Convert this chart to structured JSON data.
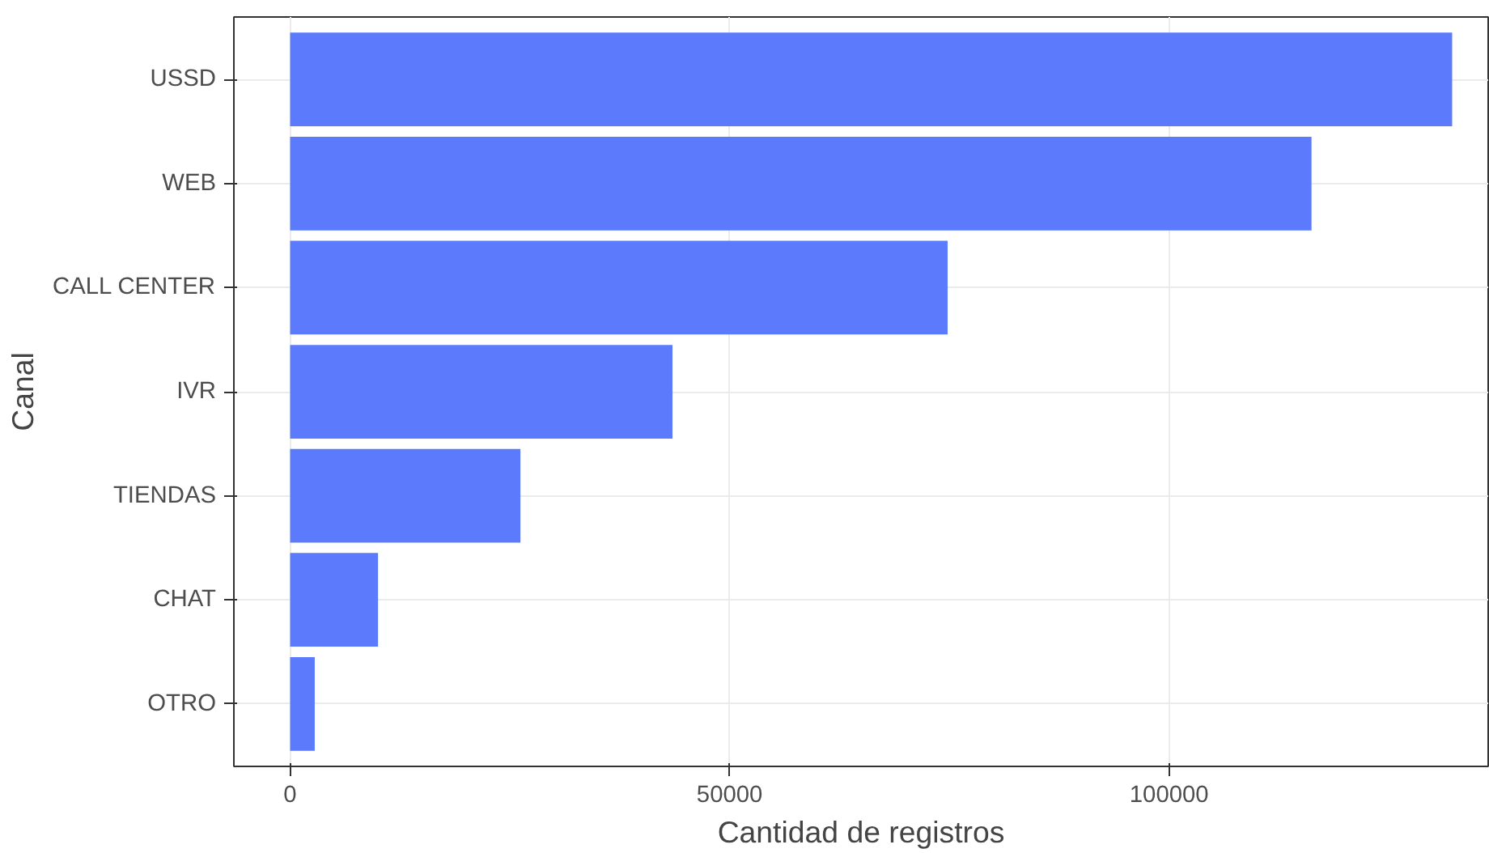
{
  "chart_data": {
    "type": "bar",
    "orientation": "horizontal",
    "xlabel": "Cantidad de registros",
    "ylabel": "Canal",
    "categories": [
      "USSD",
      "WEB",
      "CALL CENTER",
      "IVR",
      "TIENDAS",
      "CHAT",
      "OTRO"
    ],
    "values": [
      132200,
      116200,
      74800,
      43500,
      26200,
      10000,
      2800
    ],
    "color": "#5b7bfc",
    "xlim": [
      -6400,
      136300
    ],
    "xticks": [
      0,
      50000,
      100000
    ],
    "grid": true
  }
}
